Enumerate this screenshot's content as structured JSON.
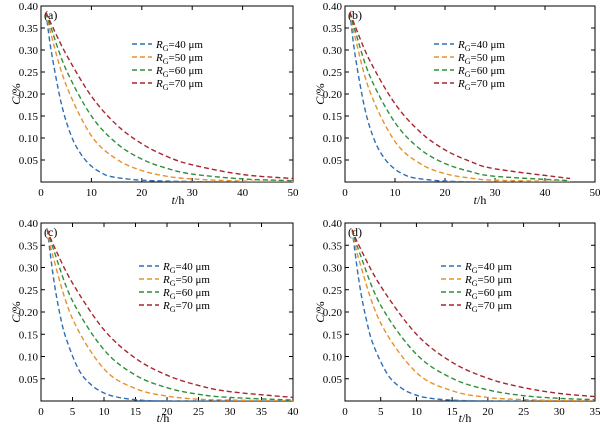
{
  "chart_data": [
    {
      "type": "line",
      "panel_label": "(a)",
      "xlabel_italic": "t",
      "xlabel_rest": "/h",
      "ylabel_italic": "C",
      "ylabel_rest": "/%",
      "xlim": [
        0,
        50
      ],
      "ylim": [
        0,
        0.4
      ],
      "xticks": [
        "0",
        "10",
        "20",
        "30",
        "40",
        "50"
      ],
      "yticks": [
        "0.05",
        "0.10",
        "0.15",
        "0.20",
        "0.25",
        "0.30",
        "0.35",
        "0.40"
      ],
      "legend_position": "center-right",
      "series": [
        {
          "name_prefix": "R",
          "name_sub": "G",
          "name_rest": "=40 μm",
          "color": "#2e6fb5",
          "x": [
            1,
            2,
            4,
            6,
            8,
            10,
            12,
            14,
            20,
            30,
            40,
            50
          ],
          "values": [
            0.385,
            0.3,
            0.18,
            0.105,
            0.062,
            0.036,
            0.021,
            0.012,
            0.004,
            0.001,
            0.0,
            0.0
          ]
        },
        {
          "name_prefix": "R",
          "name_sub": "G",
          "name_rest": "=50 μm",
          "color": "#e8912c",
          "x": [
            1,
            2,
            5,
            10,
            15,
            20,
            25,
            30,
            40,
            50
          ],
          "values": [
            0.385,
            0.335,
            0.22,
            0.105,
            0.052,
            0.026,
            0.013,
            0.007,
            0.002,
            0.001
          ]
        },
        {
          "name_prefix": "R",
          "name_sub": "G",
          "name_rest": "=60 μm",
          "color": "#2f8f3a",
          "x": [
            1,
            2,
            5,
            10,
            15,
            20,
            25,
            30,
            40,
            50
          ],
          "values": [
            0.385,
            0.35,
            0.255,
            0.15,
            0.088,
            0.052,
            0.031,
            0.018,
            0.007,
            0.003
          ]
        },
        {
          "name_prefix": "R",
          "name_sub": "G",
          "name_rest": "=70 μm",
          "color": "#a8262e",
          "x": [
            1,
            2,
            5,
            10,
            15,
            20,
            25,
            30,
            40,
            50
          ],
          "values": [
            0.385,
            0.36,
            0.29,
            0.195,
            0.13,
            0.087,
            0.058,
            0.039,
            0.017,
            0.008
          ]
        }
      ]
    },
    {
      "type": "line",
      "panel_label": "(b)",
      "xlabel_italic": "t",
      "xlabel_rest": "/h",
      "ylabel_italic": "C",
      "ylabel_rest": "/%",
      "xlim": [
        0,
        50
      ],
      "ylim": [
        0,
        0.4
      ],
      "xticks": [
        "0",
        "10",
        "20",
        "30",
        "40",
        "50"
      ],
      "yticks": [
        "0.05",
        "0.10",
        "0.15",
        "0.20",
        "0.25",
        "0.30",
        "0.35",
        "0.40"
      ],
      "legend_position": "center-right",
      "series": [
        {
          "name_prefix": "R",
          "name_sub": "G",
          "name_rest": "=40 μm",
          "color": "#2e6fb5",
          "x": [
            1,
            2,
            4,
            6,
            8,
            10,
            12,
            14,
            20,
            30,
            45
          ],
          "values": [
            0.385,
            0.29,
            0.165,
            0.092,
            0.052,
            0.029,
            0.016,
            0.009,
            0.002,
            0.0,
            0.0
          ]
        },
        {
          "name_prefix": "R",
          "name_sub": "G",
          "name_rest": "=50 μm",
          "color": "#e8912c",
          "x": [
            1,
            2,
            5,
            10,
            15,
            20,
            25,
            30,
            45
          ],
          "values": [
            0.385,
            0.33,
            0.205,
            0.092,
            0.042,
            0.019,
            0.009,
            0.004,
            0.001
          ]
        },
        {
          "name_prefix": "R",
          "name_sub": "G",
          "name_rest": "=60 μm",
          "color": "#2f8f3a",
          "x": [
            1,
            2,
            5,
            10,
            15,
            20,
            25,
            30,
            45
          ],
          "values": [
            0.385,
            0.345,
            0.24,
            0.135,
            0.075,
            0.042,
            0.024,
            0.013,
            0.003
          ]
        },
        {
          "name_prefix": "R",
          "name_sub": "G",
          "name_rest": "=70 μm",
          "color": "#a8262e",
          "x": [
            1,
            2,
            5,
            10,
            15,
            20,
            25,
            30,
            45
          ],
          "values": [
            0.385,
            0.355,
            0.275,
            0.178,
            0.114,
            0.073,
            0.047,
            0.03,
            0.008
          ]
        }
      ]
    },
    {
      "type": "line",
      "panel_label": "(c)",
      "xlabel_italic": "t",
      "xlabel_rest": "/h",
      "ylabel_italic": "C",
      "ylabel_rest": "/%",
      "xlim": [
        0,
        40
      ],
      "ylim": [
        0,
        0.4
      ],
      "xticks": [
        "0",
        "5",
        "10",
        "15",
        "20",
        "25",
        "30",
        "35",
        "40"
      ],
      "yticks": [
        "0.05",
        "0.10",
        "0.15",
        "0.20",
        "0.25",
        "0.30",
        "0.35",
        "0.40"
      ],
      "legend_position": "center-right",
      "series": [
        {
          "name_prefix": "R",
          "name_sub": "G",
          "name_rest": "=40 μm",
          "color": "#2e6fb5",
          "x": [
            1,
            2,
            3,
            4,
            6,
            8,
            10,
            12,
            15,
            20,
            40
          ],
          "values": [
            0.385,
            0.275,
            0.195,
            0.14,
            0.07,
            0.036,
            0.018,
            0.009,
            0.003,
            0.0,
            0.0
          ]
        },
        {
          "name_prefix": "R",
          "name_sub": "G",
          "name_rest": "=50 μm",
          "color": "#e8912c",
          "x": [
            1,
            2,
            5,
            10,
            15,
            20,
            25,
            30,
            40
          ],
          "values": [
            0.385,
            0.32,
            0.185,
            0.072,
            0.028,
            0.011,
            0.004,
            0.002,
            0.0
          ]
        },
        {
          "name_prefix": "R",
          "name_sub": "G",
          "name_rest": "=60 μm",
          "color": "#2f8f3a",
          "x": [
            1,
            2,
            5,
            10,
            15,
            20,
            25,
            30,
            40
          ],
          "values": [
            0.385,
            0.34,
            0.225,
            0.115,
            0.058,
            0.03,
            0.015,
            0.008,
            0.002
          ]
        },
        {
          "name_prefix": "R",
          "name_sub": "G",
          "name_rest": "=70 μm",
          "color": "#a8262e",
          "x": [
            1,
            2,
            5,
            10,
            15,
            20,
            25,
            30,
            40
          ],
          "values": [
            0.385,
            0.35,
            0.265,
            0.16,
            0.096,
            0.058,
            0.035,
            0.021,
            0.008
          ]
        }
      ]
    },
    {
      "type": "line",
      "panel_label": "(d)",
      "xlabel_italic": "t",
      "xlabel_rest": "/h",
      "ylabel_italic": "C",
      "ylabel_rest": "/%",
      "xlim": [
        0,
        35
      ],
      "ylim": [
        0,
        0.4
      ],
      "xticks": [
        "0",
        "5",
        "10",
        "15",
        "20",
        "25",
        "30",
        "35"
      ],
      "yticks": [
        "0.05",
        "0.10",
        "0.15",
        "0.20",
        "0.25",
        "0.30",
        "0.35",
        "0.40"
      ],
      "legend_position": "center-right",
      "series": [
        {
          "name_prefix": "R",
          "name_sub": "G",
          "name_rest": "=40 μm",
          "color": "#2e6fb5",
          "x": [
            1,
            2,
            3,
            4,
            6,
            8,
            10,
            12,
            15,
            20,
            35
          ],
          "values": [
            0.385,
            0.265,
            0.182,
            0.125,
            0.059,
            0.028,
            0.013,
            0.006,
            0.002,
            0.0,
            0.0
          ]
        },
        {
          "name_prefix": "R",
          "name_sub": "G",
          "name_rest": "=50 μm",
          "color": "#e8912c",
          "x": [
            1,
            2,
            5,
            10,
            15,
            20,
            25,
            30,
            35
          ],
          "values": [
            0.385,
            0.315,
            0.175,
            0.064,
            0.023,
            0.008,
            0.003,
            0.001,
            0.0
          ]
        },
        {
          "name_prefix": "R",
          "name_sub": "G",
          "name_rest": "=60 μm",
          "color": "#2f8f3a",
          "x": [
            1,
            2,
            5,
            10,
            15,
            20,
            25,
            30,
            35
          ],
          "values": [
            0.385,
            0.335,
            0.215,
            0.105,
            0.051,
            0.025,
            0.012,
            0.006,
            0.003
          ]
        },
        {
          "name_prefix": "R",
          "name_sub": "G",
          "name_rest": "=70 μm",
          "color": "#a8262e",
          "x": [
            1,
            2,
            5,
            10,
            15,
            20,
            25,
            30,
            35
          ],
          "values": [
            0.385,
            0.348,
            0.258,
            0.15,
            0.087,
            0.051,
            0.03,
            0.017,
            0.01
          ]
        }
      ]
    }
  ]
}
